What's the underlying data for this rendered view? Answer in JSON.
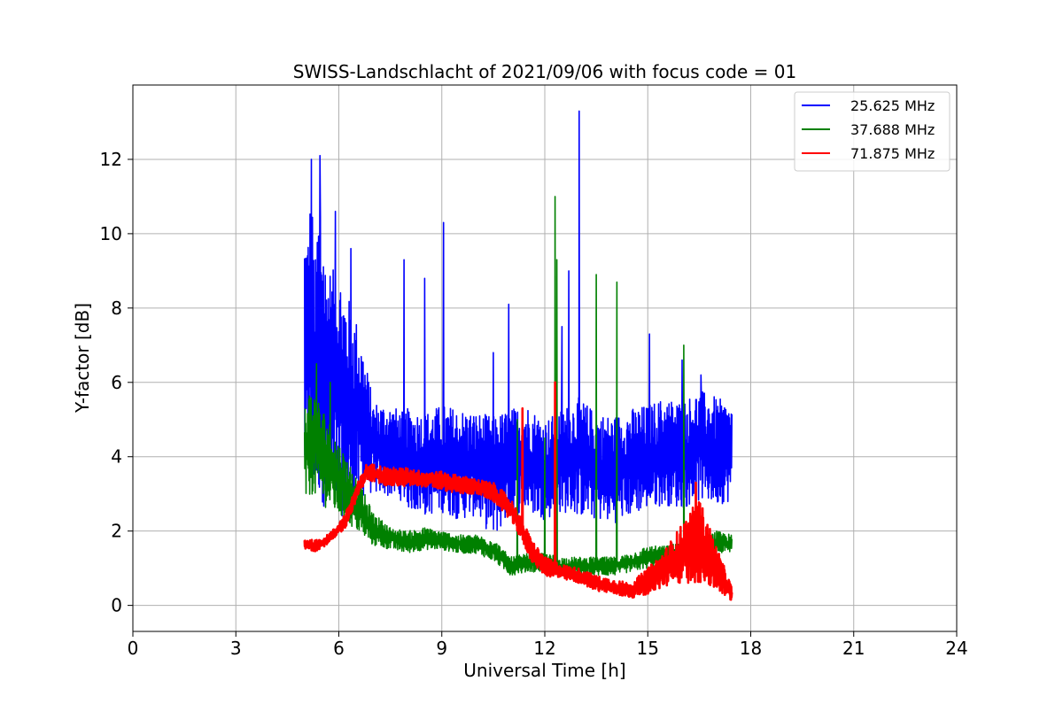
{
  "chart_data": {
    "type": "line",
    "title": "SWISS-Landschlacht of 2021/09/06 with focus code = 01",
    "xlabel": "Universal Time [h]",
    "ylabel": "Y-factor [dB]",
    "xlim": [
      0,
      24
    ],
    "ylim": [
      -0.7,
      14.0
    ],
    "xticks": [
      0,
      3,
      6,
      9,
      12,
      15,
      18,
      21,
      24
    ],
    "yticks": [
      0,
      2,
      4,
      6,
      8,
      10,
      12
    ],
    "grid": true,
    "legend_position": "top-right",
    "series": [
      {
        "name": "25.625 MHz",
        "color": "#0000ff",
        "x": [
          5.0,
          5.1,
          5.2,
          5.3,
          5.45,
          5.6,
          5.8,
          6.0,
          6.2,
          6.4,
          6.6,
          6.8,
          7.0,
          7.5,
          7.9,
          8.0,
          8.5,
          9.0,
          9.5,
          10.0,
          10.5,
          11.0,
          11.5,
          12.0,
          12.5,
          13.0,
          13.5,
          14.0,
          14.5,
          15.0,
          15.5,
          16.0,
          16.5,
          17.0,
          17.45
        ],
        "low": [
          3.0,
          3.2,
          3.1,
          3.0,
          2.8,
          2.6,
          2.5,
          2.3,
          2.5,
          2.6,
          2.8,
          3.0,
          3.0,
          2.9,
          2.8,
          2.6,
          2.4,
          2.5,
          2.3,
          2.4,
          1.8,
          2.4,
          2.5,
          2.3,
          2.5,
          2.4,
          2.3,
          2.2,
          2.4,
          2.6,
          2.7,
          2.6,
          2.8,
          2.7,
          2.8
        ],
        "high": [
          10.5,
          10.2,
          11.5,
          9.0,
          11.8,
          9.5,
          9.0,
          9.2,
          8.5,
          8.0,
          7.5,
          6.5,
          5.5,
          5.4,
          5.2,
          5.3,
          5.2,
          5.4,
          5.3,
          5.2,
          5.1,
          5.3,
          5.4,
          5.0,
          5.3,
          5.6,
          5.2,
          5.1,
          5.3,
          5.4,
          5.6,
          5.5,
          5.8,
          5.6,
          5.4
        ],
        "spikes": [
          [
            5.45,
            12.1
          ],
          [
            5.2,
            12.0
          ],
          [
            5.9,
            10.6
          ],
          [
            6.35,
            9.6
          ],
          [
            7.9,
            9.3
          ],
          [
            8.5,
            8.8
          ],
          [
            9.05,
            10.3
          ],
          [
            10.5,
            6.8
          ],
          [
            10.95,
            8.1
          ],
          [
            12.5,
            7.5
          ],
          [
            12.7,
            9.0
          ],
          [
            13.0,
            13.3
          ],
          [
            15.05,
            7.3
          ],
          [
            16.0,
            6.6
          ],
          [
            16.55,
            6.2
          ]
        ]
      },
      {
        "name": "37.688 MHz",
        "color": "#008000",
        "x": [
          5.0,
          5.2,
          5.5,
          6.0,
          6.5,
          7.0,
          7.5,
          8.0,
          8.5,
          9.0,
          9.5,
          10.0,
          10.5,
          11.0,
          11.5,
          12.0,
          12.5,
          13.0,
          13.5,
          14.0,
          14.5,
          15.0,
          15.5,
          16.0,
          16.5,
          17.0,
          17.45
        ],
        "low": [
          2.6,
          3.0,
          2.7,
          2.4,
          2.0,
          1.6,
          1.5,
          1.4,
          1.5,
          1.5,
          1.4,
          1.4,
          1.2,
          0.8,
          0.9,
          0.9,
          0.8,
          0.8,
          0.8,
          0.8,
          0.9,
          1.0,
          1.1,
          1.1,
          1.2,
          1.4,
          1.4
        ],
        "high": [
          5.6,
          5.9,
          5.4,
          4.4,
          3.5,
          2.5,
          2.1,
          2.0,
          2.1,
          2.0,
          1.9,
          1.9,
          1.8,
          1.3,
          1.4,
          1.4,
          1.3,
          1.3,
          1.3,
          1.3,
          1.4,
          1.6,
          1.6,
          1.7,
          1.8,
          2.0,
          1.9
        ],
        "spikes": [
          [
            5.35,
            6.5
          ],
          [
            5.75,
            6.0
          ],
          [
            12.3,
            11.0
          ],
          [
            12.35,
            9.3
          ],
          [
            13.5,
            8.9
          ],
          [
            14.1,
            8.7
          ],
          [
            16.05,
            7.0
          ],
          [
            11.2,
            5.0
          ],
          [
            12.0,
            4.5
          ]
        ]
      },
      {
        "name": "71.875 MHz",
        "color": "#ff0000",
        "x": [
          5.0,
          5.3,
          5.6,
          5.9,
          6.2,
          6.5,
          6.8,
          7.0,
          7.5,
          8.0,
          8.5,
          9.0,
          9.5,
          10.0,
          10.5,
          11.0,
          11.3,
          11.6,
          12.0,
          12.5,
          13.0,
          13.5,
          14.0,
          14.5,
          15.0,
          15.5,
          16.0,
          16.5,
          17.0,
          17.45
        ],
        "low": [
          1.5,
          1.45,
          1.6,
          1.8,
          2.1,
          2.8,
          3.4,
          3.3,
          3.2,
          3.2,
          3.2,
          3.1,
          3.0,
          3.0,
          2.8,
          2.3,
          1.8,
          1.2,
          0.8,
          0.7,
          0.6,
          0.4,
          0.3,
          0.2,
          0.3,
          0.5,
          0.6,
          0.6,
          0.4,
          0.1
        ],
        "high": [
          1.8,
          1.75,
          1.85,
          2.1,
          2.5,
          3.2,
          3.8,
          3.8,
          3.7,
          3.7,
          3.6,
          3.6,
          3.5,
          3.4,
          3.3,
          2.9,
          2.4,
          1.8,
          1.3,
          1.1,
          1.0,
          0.8,
          0.7,
          0.6,
          1.0,
          1.5,
          2.2,
          2.9,
          1.6,
          0.5
        ],
        "spikes": [
          [
            11.35,
            5.3
          ],
          [
            12.3,
            6.0
          ],
          [
            16.4,
            3.3
          ]
        ]
      }
    ]
  }
}
